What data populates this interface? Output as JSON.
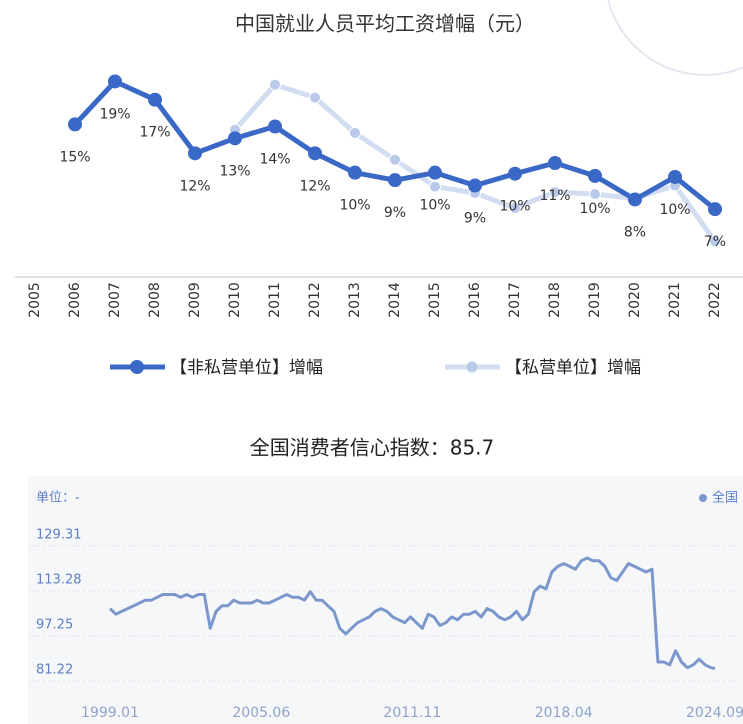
{
  "chart_data": [
    {
      "type": "line",
      "title": "中国就业人员平均工资增幅（元）",
      "categories": [
        "2005",
        "2006",
        "2007",
        "2008",
        "2009",
        "2010",
        "2011",
        "2012",
        "2013",
        "2014",
        "2015",
        "2016",
        "2017",
        "2018",
        "2019",
        "2020",
        "2021",
        "2022"
      ],
      "series": [
        {
          "name": "【非私营单位】增幅",
          "color": "#3a68c6",
          "values": [
            null,
            14.6,
            18.6,
            16.9,
            11.9,
            13.3,
            14.4,
            11.9,
            10.1,
            9.4,
            10.1,
            8.9,
            10.0,
            11.0,
            9.8,
            7.6,
            9.7,
            6.7
          ],
          "value_labels": [
            null,
            "15%",
            "19%",
            "17%",
            "12%",
            "13%",
            "14%",
            "12%",
            "10%",
            "9%",
            "10%",
            "9%",
            "10%",
            "11%",
            "10%",
            "8%",
            "10%",
            "7%"
          ]
        },
        {
          "name": "【私营单位】增幅",
          "color": "#d3ddf2",
          "values": [
            null,
            null,
            null,
            null,
            null,
            14.1,
            18.3,
            17.1,
            13.8,
            11.3,
            8.8,
            8.2,
            6.8,
            8.3,
            8.1,
            7.7,
            8.9,
            3.7
          ]
        }
      ],
      "ylim": [
        0,
        22
      ]
    },
    {
      "type": "line",
      "title": "全国消费者信心指数：85.7",
      "unit": "单位：-",
      "x": [
        1999,
        1999.25,
        1999.5,
        1999.75,
        2000,
        2000.25,
        2000.5,
        2000.75,
        2001,
        2001.25,
        2001.5,
        2001.75,
        2002,
        2002.25,
        2002.5,
        2002.75,
        2003,
        2003.25,
        2003.5,
        2003.75,
        2004,
        2004.25,
        2004.5,
        2004.75,
        2005,
        2005.25,
        2005.5,
        2005.75,
        2006,
        2006.25,
        2006.5,
        2006.75,
        2007,
        2007.25,
        2007.5,
        2007.75,
        2008,
        2008.25,
        2008.5,
        2008.75,
        2009,
        2009.25,
        2009.5,
        2009.75,
        2010,
        2010.25,
        2010.5,
        2010.75,
        2011,
        2011.25,
        2011.5,
        2011.75,
        2012,
        2012.25,
        2012.5,
        2012.75,
        2013,
        2013.25,
        2013.5,
        2013.75,
        2014,
        2014.25,
        2014.5,
        2014.75,
        2015,
        2015.25,
        2015.5,
        2015.75,
        2016,
        2016.25,
        2016.5,
        2016.75,
        2017,
        2017.25,
        2017.5,
        2017.75,
        2018,
        2018.25,
        2018.5,
        2018.75,
        2019,
        2019.25,
        2019.5,
        2019.75,
        2020,
        2020.25,
        2020.5,
        2020.75,
        2021,
        2021.25,
        2021.5,
        2021.75,
        2022,
        2022.25,
        2022.5,
        2022.75,
        2023,
        2023.25,
        2023.5,
        2023.75,
        2024,
        2024.25,
        2024.5,
        2024.67
      ],
      "series": [
        {
          "name": "全国",
          "color": "#7c97cc",
          "values": [
            107,
            105,
            106,
            107,
            108,
            109,
            110,
            110,
            111,
            112,
            112,
            112,
            111,
            112,
            111,
            112,
            112,
            100,
            106,
            108,
            108,
            110,
            109,
            109,
            109,
            110,
            109,
            109,
            110,
            111,
            112,
            111,
            111,
            110,
            113,
            110,
            110,
            108,
            106,
            100,
            98,
            100,
            102,
            103,
            104,
            106,
            107,
            106,
            104,
            103,
            102,
            104,
            102,
            100,
            105,
            104,
            101,
            102,
            104,
            103,
            105,
            105,
            106,
            104,
            107,
            106,
            104,
            103,
            104,
            106,
            103,
            105,
            113,
            115,
            114,
            120,
            122,
            123,
            122,
            121,
            124,
            125,
            124,
            124,
            122,
            118,
            117,
            120,
            123,
            122,
            121,
            120,
            121,
            88,
            88,
            87,
            92,
            88,
            86,
            87,
            89,
            87,
            86,
            85.7
          ]
        }
      ],
      "xlim": [
        1995.52,
        2025.86
      ],
      "ylim": [
        74.5,
        138.5
      ],
      "yticks": [
        81.22,
        97.25,
        113.28,
        129.31
      ],
      "xticks": [
        {
          "value": 1999.0,
          "label": "1999.01"
        },
        {
          "value": 2005.42,
          "label": "2005.06"
        },
        {
          "value": 2011.83,
          "label": "2011.11"
        },
        {
          "value": 2018.25,
          "label": "2018.04"
        },
        {
          "value": 2024.67,
          "label": "2024.09"
        }
      ],
      "grid": true
    }
  ]
}
